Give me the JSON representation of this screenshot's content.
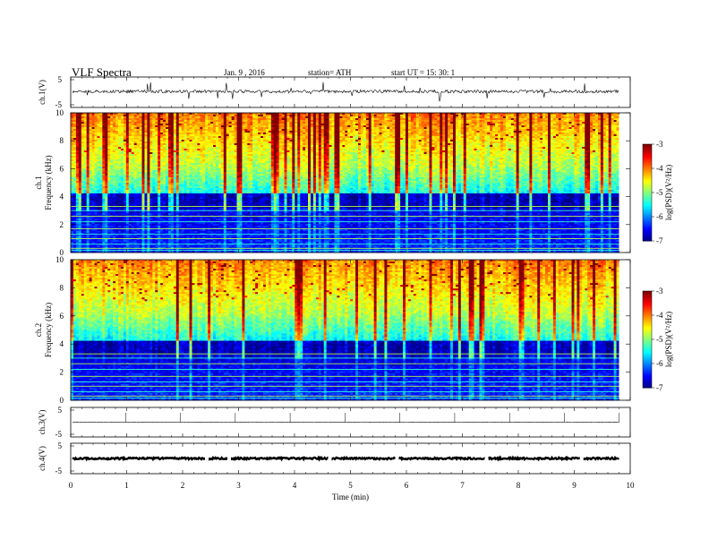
{
  "header": {
    "title": "VLF  Spectra",
    "date": "Jan. 9  , 2016",
    "station": "station= ATH",
    "start": "start  UT  =   15: 30: 1"
  },
  "chart_data": [
    {
      "type": "line",
      "name": "ch1-waveform",
      "ylabel": "ch.1(V)",
      "ylim": [
        -5,
        5
      ],
      "yticks": [
        "5",
        "-5"
      ],
      "xlim": [
        0,
        10
      ],
      "baseline": 0.3,
      "noise_amplitude": 0.6
    },
    {
      "type": "heatmap",
      "name": "ch1-spectrogram",
      "ylabel_line1": "ch.1",
      "ylabel_line2": "Frequency  (kHz)",
      "ylim": [
        0,
        10
      ],
      "yticks": [
        "0",
        "2",
        "4",
        "6",
        "8",
        "10"
      ],
      "xlim": [
        0,
        9.8
      ],
      "colorbar": {
        "label": "log(PSD)(V²/Hz)",
        "range": [
          -7,
          -3
        ],
        "ticks": [
          "-3",
          "-4",
          "-5",
          "-6",
          "-7"
        ]
      }
    },
    {
      "type": "heatmap",
      "name": "ch2-spectrogram",
      "ylabel_line1": "ch.2",
      "ylabel_line2": "Frequency  (kHz)",
      "ylim": [
        0,
        10
      ],
      "yticks": [
        "0",
        "2",
        "4",
        "6",
        "8",
        "10"
      ],
      "xlim": [
        0,
        9.8
      ],
      "colorbar": {
        "label": "log(PSD)(V²/Hz)",
        "range": [
          -7,
          -3
        ],
        "ticks": [
          "-3",
          "-4",
          "-5",
          "-6",
          "-7"
        ]
      }
    },
    {
      "type": "line",
      "name": "ch3-waveform",
      "ylabel": "ch.3(V)",
      "ylim": [
        -5,
        5
      ],
      "yticks": [
        "5",
        "-5"
      ],
      "xlim": [
        0,
        10
      ],
      "baseline": 0.0,
      "noise_amplitude": 0.1
    },
    {
      "type": "line",
      "name": "ch4-waveform",
      "ylabel": "ch.4(V)",
      "ylim": [
        -5,
        5
      ],
      "yticks": [
        "5",
        "-5"
      ],
      "xlim": [
        0,
        10
      ],
      "baseline": 0.0,
      "noise_amplitude": 0.35
    }
  ],
  "xaxis": {
    "label": "Time  (min)",
    "ticks": [
      "0",
      "1",
      "2",
      "3",
      "4",
      "5",
      "6",
      "7",
      "8",
      "9",
      "10"
    ]
  }
}
